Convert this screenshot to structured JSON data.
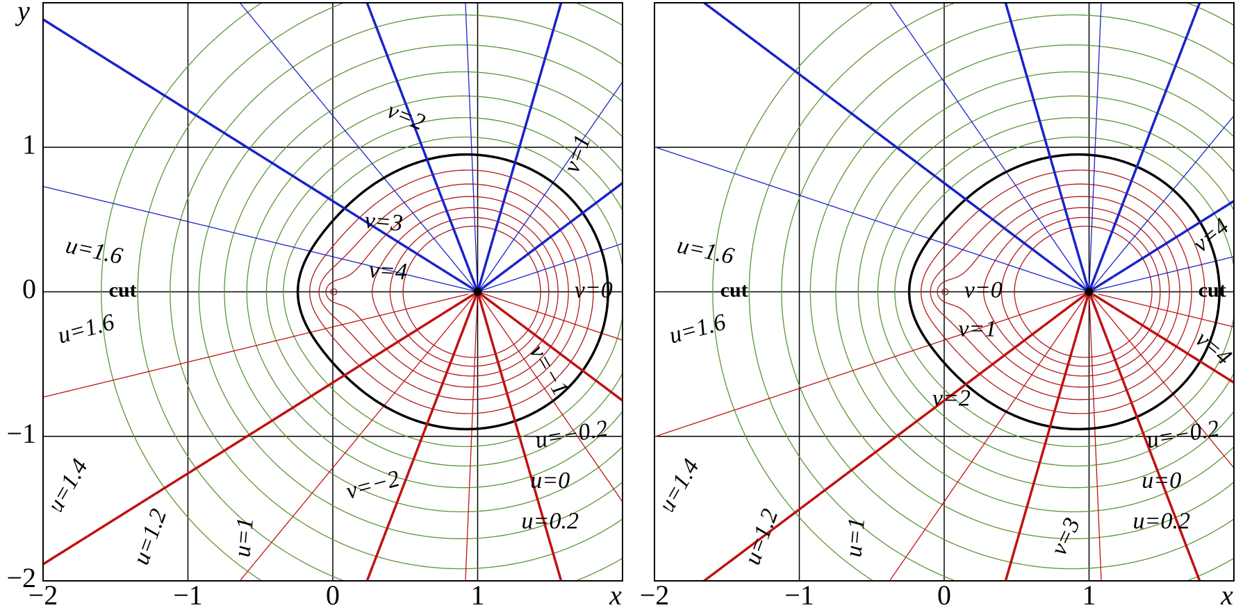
{
  "chart_data": [
    {
      "type": "contour",
      "x_label": "x",
      "y_label": "y",
      "xlim": [
        -2,
        2
      ],
      "ylim": [
        -2,
        2
      ],
      "xticks": [
        {
          "value": -2,
          "label": "−2"
        },
        {
          "value": -1,
          "label": "−1"
        },
        0,
        1
      ],
      "yticks": [
        {
          "value": -2,
          "label": "−2"
        },
        {
          "value": -1,
          "label": "−1"
        },
        0,
        1
      ],
      "grid": true,
      "branch": "left",
      "u_levels": [
        -1.2,
        -1,
        -0.8,
        -0.6,
        -0.4,
        -0.2,
        0,
        0.2,
        0.4,
        0.6,
        0.8,
        1,
        1.2,
        1.4,
        1.6
      ],
      "v_levels": [
        -4.5,
        -4,
        -3.5,
        -3,
        -2.5,
        -2,
        -1.5,
        -1,
        -0.5,
        0,
        0.5,
        1,
        1.5,
        2,
        2.5,
        3,
        3.5,
        4,
        4.5
      ],
      "colors": {
        "u_neg": "#b01818",
        "u_zero": "#000000",
        "u_pos": "#5a9434",
        "v_neg": "#c01010",
        "v_zero": "#a020a0",
        "v_pos": "#1822c8"
      },
      "labels": [
        "v=2",
        "v=1",
        "v=3",
        "v=4",
        "u=1.6",
        "cut",
        "u=1.6",
        "v=0",
        "v=−1",
        "u=−0.2",
        "u=0",
        "u=0.2",
        "v=−2",
        "u=1.4",
        "u=1.2",
        "u=1"
      ]
    },
    {
      "type": "contour",
      "x_label": "x",
      "xlim": [
        -2,
        2
      ],
      "ylim": [
        -2,
        2
      ],
      "xticks": [
        {
          "value": -2,
          "label": "−2"
        },
        {
          "value": -1,
          "label": "−1"
        },
        0,
        1
      ],
      "grid": true,
      "branch": "right",
      "u_levels": [
        -1.2,
        -1,
        -0.8,
        -0.6,
        -0.4,
        -0.2,
        0,
        0.2,
        0.4,
        0.6,
        0.8,
        1,
        1.2,
        1.4,
        1.6
      ],
      "v_levels": [
        -4.5,
        -4,
        -3.5,
        -3,
        -2.5,
        -2,
        -1.5,
        -1,
        -0.5,
        0,
        0.5,
        1,
        1.5,
        2,
        2.5,
        3,
        3.5,
        4,
        4.5
      ],
      "colors": {
        "u_neg": "#b01818",
        "u_zero": "#000000",
        "u_pos": "#5a9434",
        "v_neg": "#1822c8",
        "v_zero": "#a020a0",
        "v_pos": "#c01010"
      },
      "labels": [
        "u=1.6",
        "cut",
        "u=1.6",
        "v=0",
        "v=1",
        "v=2",
        "v=4",
        "cut",
        "v=4",
        "u=−0.2",
        "u=0",
        "u=0.2",
        "v=3",
        "u=1.4",
        "u=1.2",
        "u=1"
      ]
    }
  ]
}
